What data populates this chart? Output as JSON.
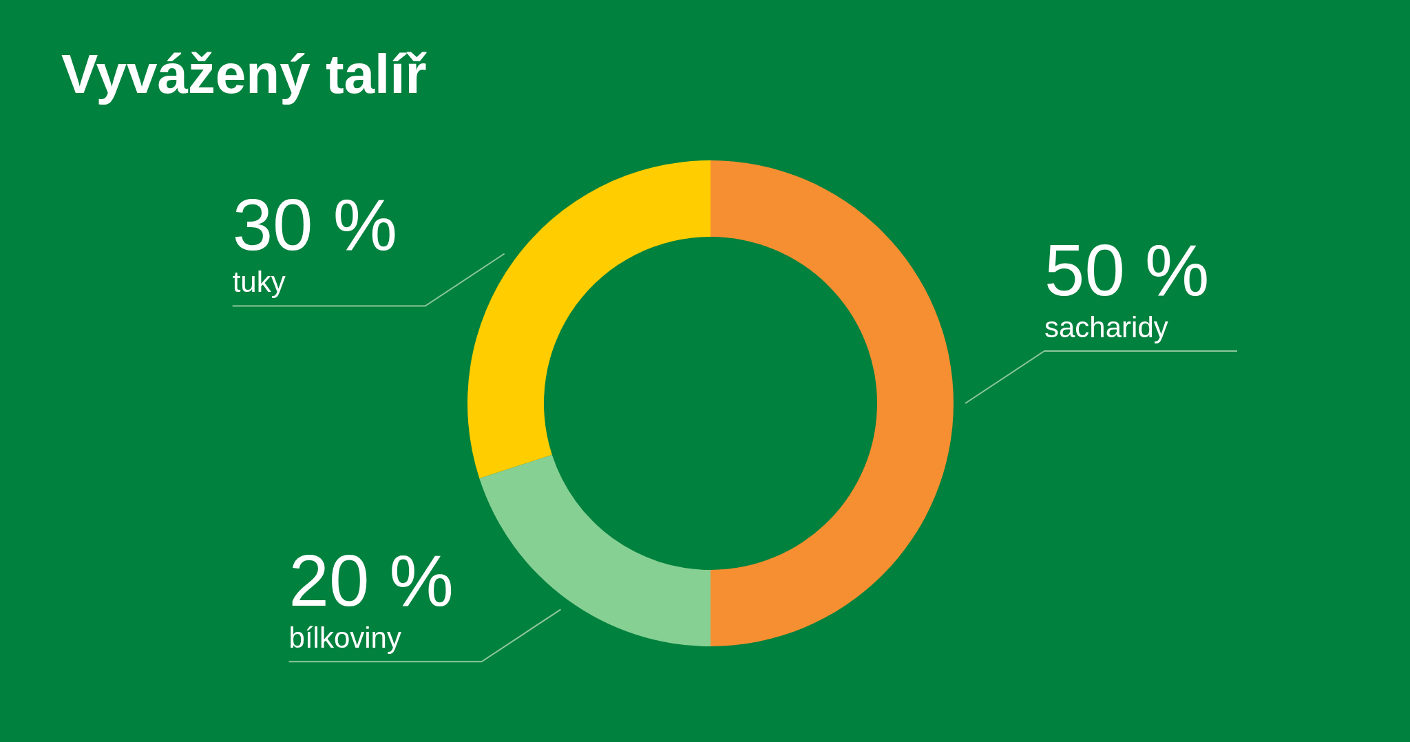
{
  "chart_data": {
    "type": "donut",
    "title": "Vyvážený talíř",
    "categories": [
      "sacharidy",
      "bílkoviny",
      "tuky"
    ],
    "values": [
      50,
      20,
      30
    ],
    "colors": [
      "#f68f31",
      "#86d094",
      "#ffcd00"
    ],
    "value_labels": [
      "50 %",
      "20 %",
      "30 %"
    ]
  }
}
